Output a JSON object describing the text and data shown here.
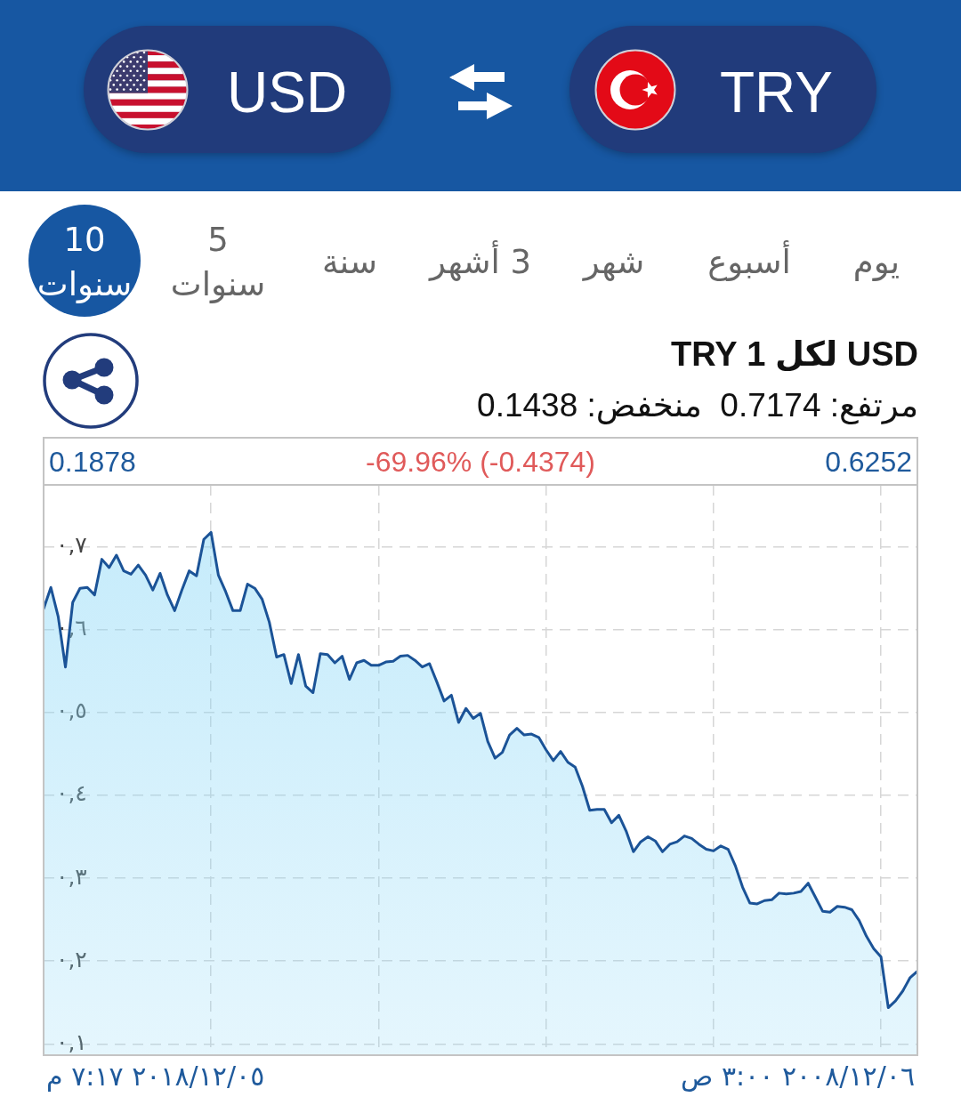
{
  "chart_data": {
    "type": "area",
    "title": "USD لكل 1 TRY",
    "subtitle": "مرتفع: 0.7174  منخفض: 0.1438",
    "annotations": [
      "USD",
      "TRY",
      "يوم",
      "أسبوع",
      "شهر",
      "3 أشهر",
      "سنة",
      "5 سنوات",
      "10 سنوات",
      "0.6252",
      "-69.96% (-0.4374)",
      "0.1878",
      "٢٠٠٨/١٢/٠٦ ٣:٠٠ ص",
      "٢٠١٨/١٢/٠٥ ٧:١٧ م"
    ],
    "categories": [
      null,
      null,
      null,
      null,
      null,
      null,
      null,
      null,
      null,
      null,
      null,
      null,
      null,
      null,
      null,
      null,
      null,
      null,
      null,
      null,
      null,
      null,
      null,
      null,
      null,
      null,
      null,
      null,
      null,
      null,
      null,
      null,
      null,
      null,
      null,
      null,
      null,
      null,
      null,
      null,
      null,
      null,
      null,
      null,
      null,
      null,
      null,
      null,
      null,
      null,
      null,
      null,
      null,
      null,
      null,
      null,
      null,
      null,
      null,
      null,
      null,
      null,
      null,
      null,
      null,
      null,
      null,
      null,
      null,
      null,
      null,
      null,
      null,
      null,
      null,
      null,
      null,
      null,
      null,
      null,
      null,
      null,
      null,
      null,
      null,
      null,
      null,
      null,
      null,
      null,
      null,
      null,
      null,
      null,
      null,
      null,
      null,
      null,
      null,
      null,
      null,
      null,
      null,
      null,
      null,
      null,
      null,
      null,
      null,
      null,
      null,
      null,
      null,
      null,
      null,
      null,
      null,
      null,
      null,
      null,
      null
    ],
    "values": [
      0.6252,
      0.651,
      0.616,
      0.555,
      0.633,
      0.65,
      0.651,
      0.642,
      0.685,
      0.675,
      0.69,
      0.671,
      0.667,
      0.678,
      0.666,
      0.648,
      0.668,
      0.642,
      0.623,
      0.648,
      0.671,
      0.665,
      0.709,
      0.7174,
      0.666,
      0.646,
      0.623,
      0.623,
      0.655,
      0.65,
      0.637,
      0.609,
      0.567,
      0.57,
      0.535,
      0.57,
      0.532,
      0.524,
      0.571,
      0.57,
      0.56,
      0.568,
      0.54,
      0.56,
      0.563,
      0.557,
      0.557,
      0.561,
      0.562,
      0.568,
      0.569,
      0.563,
      0.555,
      0.559,
      0.537,
      0.514,
      0.521,
      0.488,
      0.505,
      0.493,
      0.499,
      0.465,
      0.445,
      0.452,
      0.473,
      0.481,
      0.473,
      0.474,
      0.47,
      0.455,
      0.442,
      0.453,
      0.44,
      0.434,
      0.411,
      0.382,
      0.383,
      0.383,
      0.367,
      0.376,
      0.357,
      0.332,
      0.344,
      0.35,
      0.345,
      0.332,
      0.341,
      0.344,
      0.351,
      0.348,
      0.341,
      0.335,
      0.333,
      0.339,
      0.335,
      0.315,
      0.289,
      0.27,
      0.269,
      0.273,
      0.274,
      0.282,
      0.281,
      0.282,
      0.284,
      0.294,
      0.277,
      0.26,
      0.259,
      0.266,
      0.265,
      0.262,
      0.249,
      0.23,
      0.215,
      0.205,
      0.1438,
      0.152,
      0.164,
      0.18,
      0.1878
    ],
    "color": "#1b5397",
    "ylim": [
      0.0864,
      0.7748
    ],
    "yticks": [
      {
        "value": 0.1,
        "label": "٠,١"
      },
      {
        "value": 0.2,
        "label": "٠,٢"
      },
      {
        "value": 0.3,
        "label": "٠,٣"
      },
      {
        "value": 0.4,
        "label": "٠,٤"
      },
      {
        "value": 0.5,
        "label": "٠,٥"
      },
      {
        "value": 0.6,
        "label": "٠,٦"
      },
      {
        "value": 0.7,
        "label": "٠,٧"
      }
    ],
    "grid": true,
    "marker": "none"
  }
}
